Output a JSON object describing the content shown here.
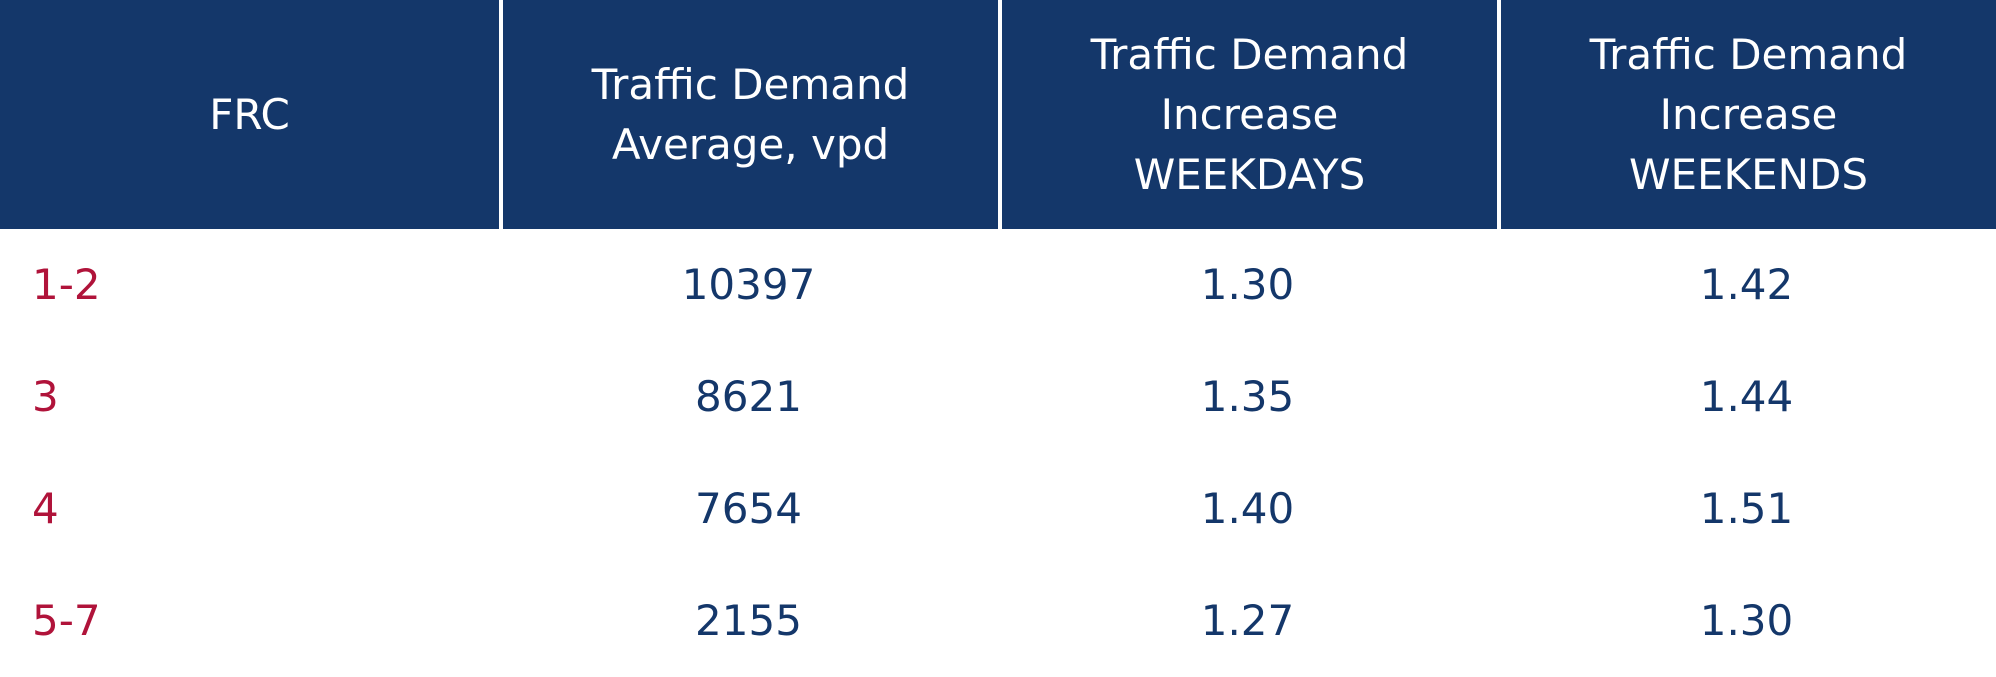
{
  "table": {
    "headers": [
      {
        "lines": [
          "FRC"
        ]
      },
      {
        "lines": [
          "Traffic Demand",
          "Average, vpd"
        ]
      },
      {
        "lines": [
          "Traffic Demand",
          "Increase",
          "WEEKDAYS"
        ]
      },
      {
        "lines": [
          "Traffic Demand",
          "Increase",
          "WEEKENDS"
        ]
      }
    ],
    "rows": [
      {
        "frc": "1-2",
        "average": "10397",
        "weekdays": "1.30",
        "weekends": "1.42"
      },
      {
        "frc": "3",
        "average": "8621",
        "weekdays": "1.35",
        "weekends": "1.44"
      },
      {
        "frc": "4",
        "average": "7654",
        "weekdays": "1.40",
        "weekends": "1.51"
      },
      {
        "frc": "5-7",
        "average": "2155",
        "weekdays": "1.27",
        "weekends": "1.30"
      }
    ]
  },
  "colors": {
    "header_background": "#14376a",
    "header_text": "#ffffff",
    "frc_text": "#b0133a",
    "value_text": "#14376a"
  }
}
